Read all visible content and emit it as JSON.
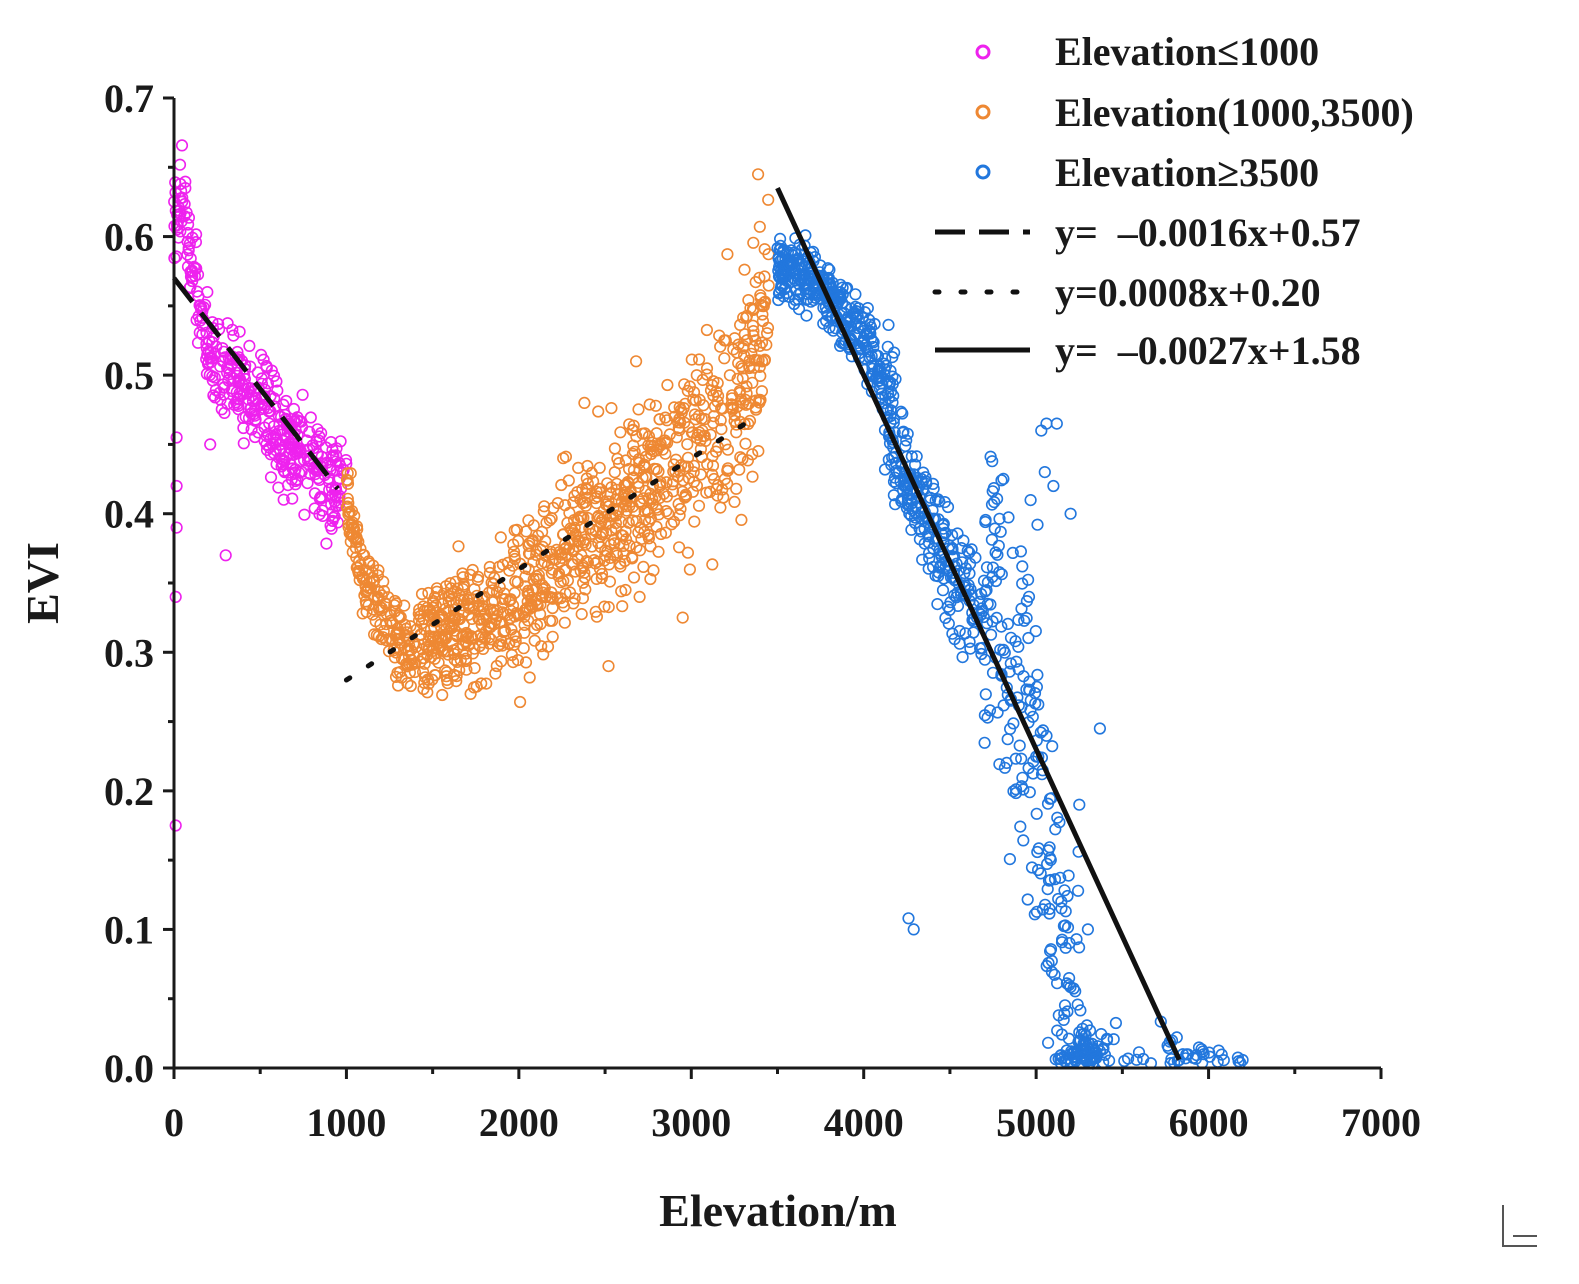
{
  "chart_data": {
    "type": "scatter",
    "title": "",
    "xlabel": "Elevation/m",
    "ylabel": "EVI",
    "xlim": [
      0,
      7000
    ],
    "ylim": [
      0.0,
      0.7
    ],
    "x_ticks": [
      0,
      1000,
      2000,
      3000,
      4000,
      5000,
      6000,
      7000
    ],
    "x_tick_labels": [
      "0",
      "1000",
      "2000",
      "3000",
      "4000",
      "5000",
      "6000",
      "7000"
    ],
    "y_ticks": [
      0.0,
      0.1,
      0.2,
      0.3,
      0.4,
      0.5,
      0.6,
      0.7
    ],
    "y_tick_labels": [
      "0.0",
      "0.1",
      "0.2",
      "0.3",
      "0.4",
      "0.5",
      "0.6",
      "0.7"
    ],
    "grid": false,
    "legend_position": "top-right",
    "series": [
      {
        "name": "Elevation≤1000",
        "color": "#ee22ee",
        "marker": "open-circle",
        "profile": [
          [
            0,
            0.62
          ],
          [
            50,
            0.63
          ],
          [
            100,
            0.58
          ],
          [
            200,
            0.52
          ],
          [
            300,
            0.5
          ],
          [
            400,
            0.49
          ],
          [
            500,
            0.48
          ],
          [
            600,
            0.46
          ],
          [
            700,
            0.45
          ],
          [
            800,
            0.44
          ],
          [
            900,
            0.42
          ],
          [
            1000,
            0.42
          ]
        ],
        "outliers": [
          [
            10,
            0.175
          ],
          [
            10,
            0.34
          ],
          [
            15,
            0.39
          ],
          [
            15,
            0.42
          ],
          [
            15,
            0.455
          ],
          [
            300,
            0.37
          ],
          [
            210,
            0.45
          ]
        ]
      },
      {
        "name": "Elevation(1000,3500)",
        "color": "#ee8833",
        "marker": "open-circle",
        "profile": [
          [
            1000,
            0.42
          ],
          [
            1050,
            0.38
          ],
          [
            1100,
            0.35
          ],
          [
            1200,
            0.33
          ],
          [
            1300,
            0.31
          ],
          [
            1380,
            0.3
          ],
          [
            1450,
            0.31
          ],
          [
            1600,
            0.32
          ],
          [
            1800,
            0.32
          ],
          [
            2000,
            0.34
          ],
          [
            2200,
            0.36
          ],
          [
            2400,
            0.39
          ],
          [
            2600,
            0.4
          ],
          [
            2800,
            0.43
          ],
          [
            3000,
            0.45
          ],
          [
            3200,
            0.47
          ],
          [
            3350,
            0.5
          ],
          [
            3450,
            0.57
          ]
        ],
        "outliers": [
          [
            1720,
            0.27
          ],
          [
            2520,
            0.29
          ],
          [
            2380,
            0.48
          ],
          [
            2680,
            0.51
          ],
          [
            2950,
            0.325
          ],
          [
            3200,
            0.525
          ],
          [
            2700,
            0.34
          ]
        ]
      },
      {
        "name": "Elevation≥3500",
        "color": "#2277dd",
        "marker": "open-circle",
        "profile": [
          [
            3500,
            0.58
          ],
          [
            3700,
            0.57
          ],
          [
            3900,
            0.54
          ],
          [
            4050,
            0.52
          ],
          [
            4150,
            0.47
          ],
          [
            4250,
            0.42
          ],
          [
            4400,
            0.39
          ],
          [
            4550,
            0.35
          ],
          [
            4700,
            0.33
          ],
          [
            4850,
            0.3
          ],
          [
            5000,
            0.22
          ],
          [
            5100,
            0.12
          ],
          [
            5200,
            0.04
          ],
          [
            5300,
            0.01
          ],
          [
            5600,
            0.01
          ],
          [
            6200,
            0.005
          ]
        ],
        "outliers": [
          [
            4260,
            0.108
          ],
          [
            4290,
            0.1
          ],
          [
            5370,
            0.245
          ],
          [
            5030,
            0.46
          ],
          [
            5060,
            0.465
          ],
          [
            5120,
            0.465
          ],
          [
            5050,
            0.43
          ],
          [
            5100,
            0.42
          ],
          [
            5200,
            0.4
          ],
          [
            5250,
            0.19
          ],
          [
            5300,
            0.1
          ]
        ]
      }
    ],
    "fit_lines": [
      {
        "label": "y=  –0.0016x+0.57",
        "style": "dashed",
        "slope_per_1000m": -0.16,
        "intercept": 0.57,
        "x_range": [
          0,
          950
        ],
        "color": "#111111"
      },
      {
        "label": "y=0.0008x+0.20",
        "style": "dotted",
        "slope_per_1000m": 0.08,
        "intercept": 0.2,
        "x_range": [
          1000,
          3400
        ],
        "color": "#111111"
      },
      {
        "label": "y=  –0.0027x+1.58",
        "style": "solid",
        "slope_per_1000m": -0.27,
        "intercept": 1.58,
        "x_range": [
          3500,
          5830
        ],
        "color": "#111111"
      }
    ]
  }
}
